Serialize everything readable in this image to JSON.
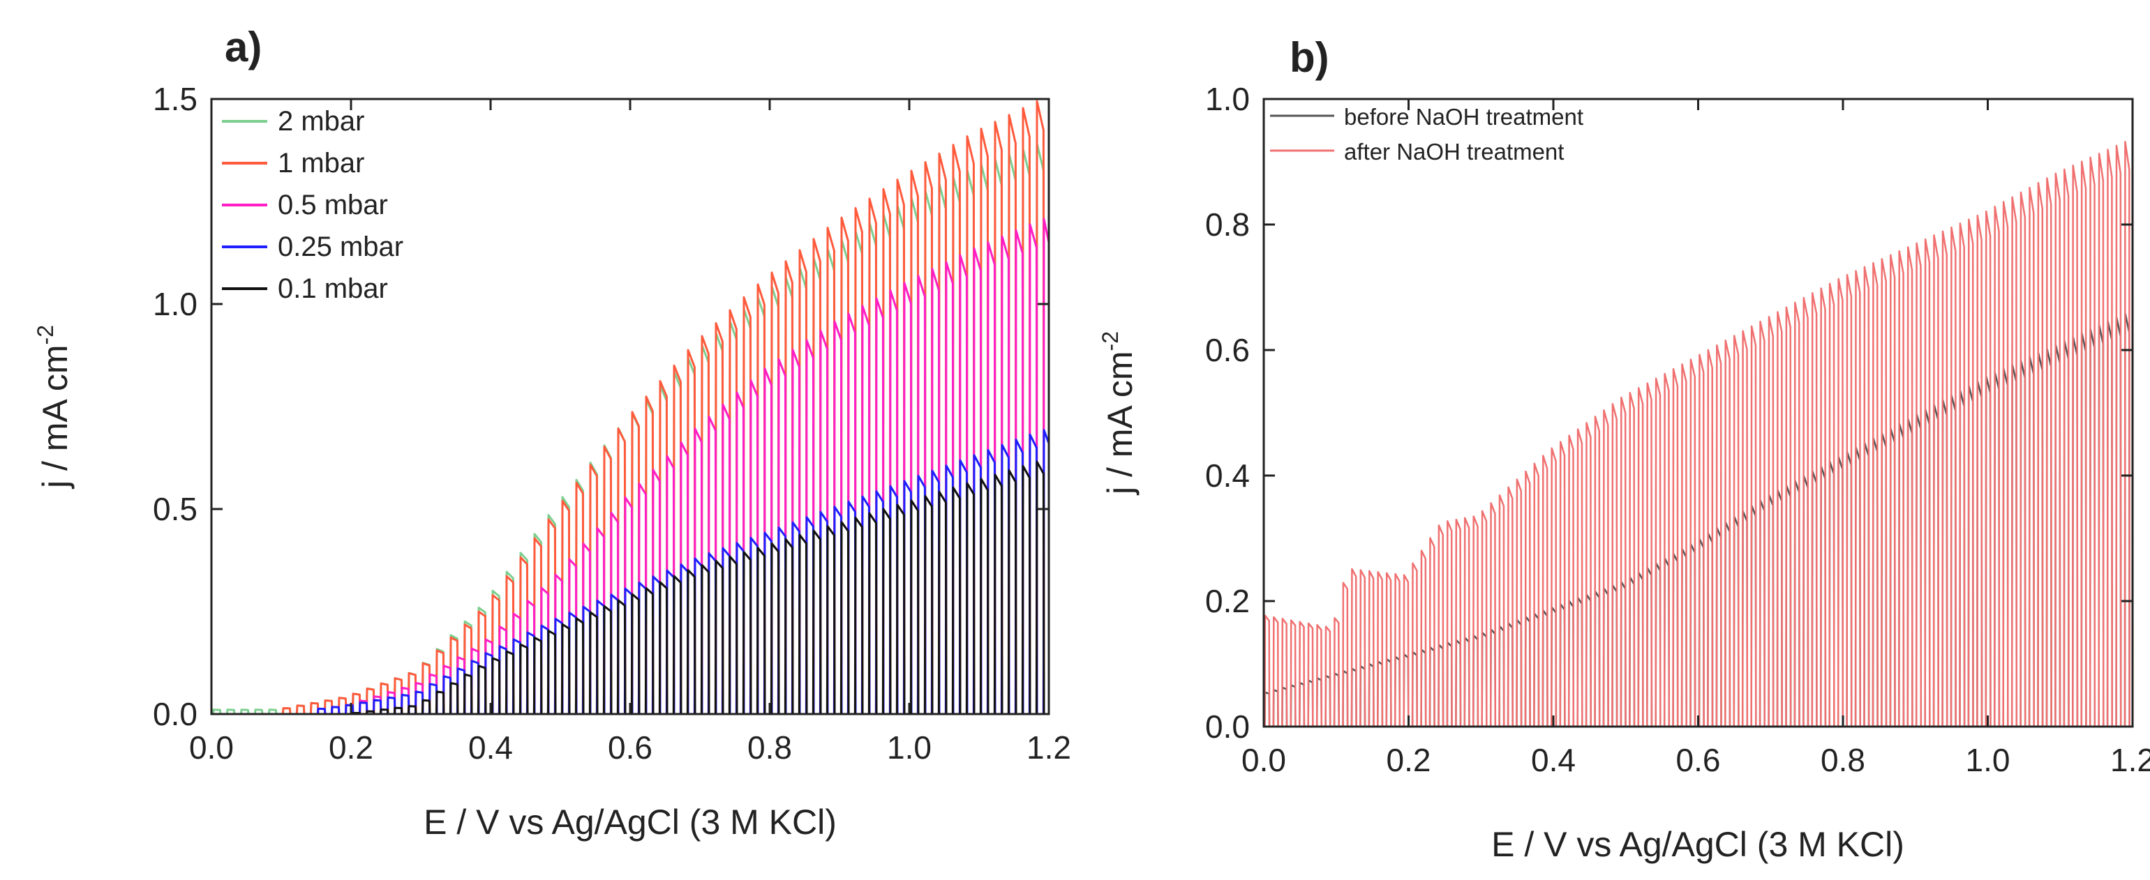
{
  "chart_data": [
    {
      "type": "line",
      "panel_label": "a)",
      "xlabel": "E / V vs Ag/AgCl (3 M KCl)",
      "ylabel_main": "j / mA cm",
      "ylabel_sup": "-2",
      "xlim": [
        0.0,
        1.2
      ],
      "ylim": [
        0.0,
        1.5
      ],
      "xticks": [
        0.0,
        0.2,
        0.4,
        0.6,
        0.8,
        1.0,
        1.2
      ],
      "xtick_labels": [
        "0.0",
        "0.2",
        "0.4",
        "0.6",
        "0.8",
        "1.0",
        "1.2"
      ],
      "yticks": [
        0.0,
        0.5,
        1.0,
        1.5
      ],
      "ytick_labels": [
        "0.0",
        "0.5",
        "1.0",
        "1.5"
      ],
      "legend_position": "top-left",
      "chopped_light": true,
      "series": [
        {
          "name": "2 mbar",
          "color": "#7dcf8f",
          "start": 0.0,
          "dark_points": [
            [
              0.0,
              0.0
            ],
            [
              1.2,
              0.0
            ]
          ],
          "light_points": [
            [
              0.0,
              0.01
            ],
            [
              0.1,
              0.01
            ],
            [
              0.2,
              0.04
            ],
            [
              0.3,
              0.1
            ],
            [
              0.4,
              0.26
            ],
            [
              0.5,
              0.48
            ],
            [
              0.6,
              0.68
            ],
            [
              0.7,
              0.84
            ],
            [
              0.8,
              0.98
            ],
            [
              0.9,
              1.09
            ],
            [
              1.0,
              1.19
            ],
            [
              1.1,
              1.27
            ],
            [
              1.2,
              1.33
            ]
          ]
        },
        {
          "name": "1 mbar",
          "color": "#ff5a3c",
          "start": 0.1,
          "dark_points": [
            [
              0.1,
              0.0
            ],
            [
              1.2,
              0.0
            ]
          ],
          "light_points": [
            [
              0.1,
              0.01
            ],
            [
              0.2,
              0.04
            ],
            [
              0.3,
              0.1
            ],
            [
              0.4,
              0.25
            ],
            [
              0.5,
              0.47
            ],
            [
              0.6,
              0.68
            ],
            [
              0.7,
              0.86
            ],
            [
              0.8,
              1.01
            ],
            [
              0.9,
              1.14
            ],
            [
              1.0,
              1.25
            ],
            [
              1.1,
              1.35
            ],
            [
              1.2,
              1.43
            ]
          ]
        },
        {
          "name": "0.5 mbar",
          "color": "#ff1fc4",
          "start": 0.15,
          "dark_points": [
            [
              0.15,
              0.0
            ],
            [
              1.2,
              0.0
            ]
          ],
          "light_points": [
            [
              0.15,
              0.01
            ],
            [
              0.2,
              0.02
            ],
            [
              0.3,
              0.07
            ],
            [
              0.4,
              0.17
            ],
            [
              0.5,
              0.32
            ],
            [
              0.6,
              0.5
            ],
            [
              0.7,
              0.66
            ],
            [
              0.8,
              0.8
            ],
            [
              0.9,
              0.91
            ],
            [
              1.0,
              1.0
            ],
            [
              1.1,
              1.08
            ],
            [
              1.2,
              1.15
            ]
          ]
        },
        {
          "name": "0.25 mbar",
          "color": "#1f1fff",
          "start": 0.15,
          "dark_points": [
            [
              0.15,
              0.0
            ],
            [
              1.2,
              0.0
            ]
          ],
          "light_points": [
            [
              0.15,
              0.01
            ],
            [
              0.2,
              0.02
            ],
            [
              0.3,
              0.05
            ],
            [
              0.4,
              0.14
            ],
            [
              0.5,
              0.22
            ],
            [
              0.6,
              0.29
            ],
            [
              0.7,
              0.36
            ],
            [
              0.8,
              0.42
            ],
            [
              0.9,
              0.48
            ],
            [
              1.0,
              0.54
            ],
            [
              1.1,
              0.6
            ],
            [
              1.2,
              0.66
            ]
          ]
        },
        {
          "name": "0.1 mbar",
          "color": "#111111",
          "start": 0.2,
          "dark_points": [
            [
              0.2,
              0.0
            ],
            [
              1.2,
              0.0
            ]
          ],
          "light_points": [
            [
              0.2,
              0.0
            ],
            [
              0.3,
              0.02
            ],
            [
              0.4,
              0.12
            ],
            [
              0.5,
              0.2
            ],
            [
              0.6,
              0.27
            ],
            [
              0.7,
              0.34
            ],
            [
              0.8,
              0.39
            ],
            [
              0.9,
              0.44
            ],
            [
              1.0,
              0.49
            ],
            [
              1.1,
              0.54
            ],
            [
              1.2,
              0.59
            ]
          ]
        }
      ]
    },
    {
      "type": "line",
      "panel_label": "b)",
      "xlabel": "E / V vs Ag/AgCl (3 M KCl)",
      "ylabel_main": "j / mA cm",
      "ylabel_sup": "-2",
      "xlim": [
        0.0,
        1.2
      ],
      "ylim": [
        0.0,
        1.0
      ],
      "xticks": [
        0.0,
        0.2,
        0.4,
        0.6,
        0.8,
        1.0,
        1.2
      ],
      "xtick_labels": [
        "0.0",
        "0.2",
        "0.4",
        "0.6",
        "0.8",
        "1.0",
        "1.2"
      ],
      "yticks": [
        0.0,
        0.2,
        0.4,
        0.6,
        0.8,
        1.0
      ],
      "ytick_labels": [
        "0.0",
        "0.2",
        "0.4",
        "0.6",
        "0.8",
        "1.0"
      ],
      "legend_position": "top-left",
      "chopped_light": true,
      "series": [
        {
          "name": "before NaOH treatment",
          "color": "#555555",
          "start": 0.0,
          "dark_points": [
            [
              0.0,
              0.0
            ],
            [
              1.2,
              0.0
            ]
          ],
          "light_points": [
            [
              0.0,
              0.05
            ],
            [
              0.1,
              0.08
            ],
            [
              0.2,
              0.11
            ],
            [
              0.3,
              0.14
            ],
            [
              0.4,
              0.18
            ],
            [
              0.5,
              0.22
            ],
            [
              0.6,
              0.28
            ],
            [
              0.7,
              0.35
            ],
            [
              0.8,
              0.41
            ],
            [
              0.9,
              0.47
            ],
            [
              1.0,
              0.53
            ],
            [
              1.1,
              0.58
            ],
            [
              1.2,
              0.63
            ]
          ]
        },
        {
          "name": "after NaOH treatment",
          "color": "#f07070",
          "start": 0.0,
          "dark_points": [
            [
              0.0,
              0.0
            ],
            [
              1.2,
              0.0
            ]
          ],
          "light_points": [
            [
              0.0,
              0.17
            ],
            [
              0.1,
              0.15
            ],
            [
              0.12,
              0.24
            ],
            [
              0.2,
              0.23
            ],
            [
              0.25,
              0.31
            ],
            [
              0.3,
              0.32
            ],
            [
              0.4,
              0.42
            ],
            [
              0.5,
              0.5
            ],
            [
              0.6,
              0.56
            ],
            [
              0.7,
              0.62
            ],
            [
              0.8,
              0.68
            ],
            [
              0.9,
              0.73
            ],
            [
              1.0,
              0.78
            ],
            [
              1.1,
              0.84
            ],
            [
              1.2,
              0.89
            ]
          ]
        }
      ]
    }
  ]
}
